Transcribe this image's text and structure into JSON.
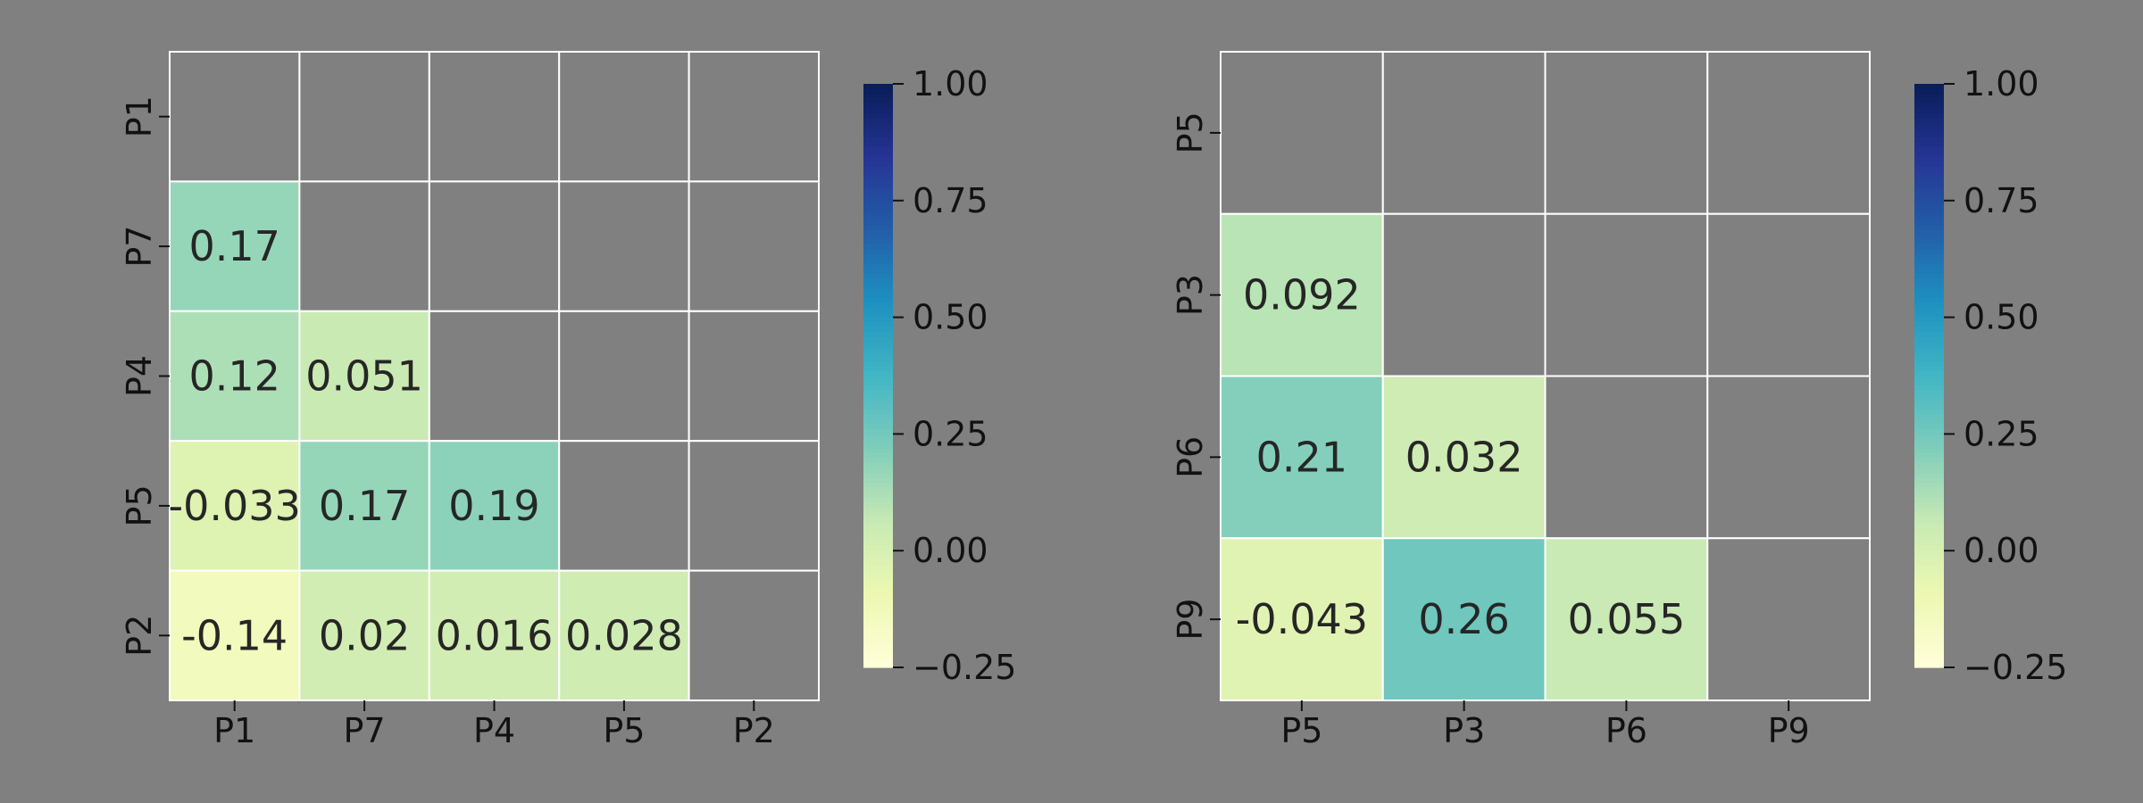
{
  "chart_data": [
    {
      "type": "heatmap",
      "title": "",
      "xlabel": "",
      "ylabel": "",
      "x_categories": [
        "P1",
        "P7",
        "P4",
        "P5",
        "P2"
      ],
      "y_categories": [
        "P1",
        "P7",
        "P4",
        "P5",
        "P2"
      ],
      "mask": "upper triangle incl. diagonal",
      "values": [
        [
          null,
          null,
          null,
          null,
          null
        ],
        [
          0.17,
          null,
          null,
          null,
          null
        ],
        [
          0.12,
          0.051,
          null,
          null,
          null
        ],
        [
          -0.033,
          0.17,
          0.19,
          null,
          null
        ],
        [
          -0.14,
          0.02,
          0.016,
          0.028,
          null
        ]
      ],
      "annotations": [
        [
          null,
          null,
          null,
          null,
          null
        ],
        [
          "0.17",
          null,
          null,
          null,
          null
        ],
        [
          "0.12",
          "0.051",
          null,
          null,
          null
        ],
        [
          "-0.033",
          "0.17",
          "0.19",
          null,
          null
        ],
        [
          "-0.14",
          "0.02",
          "0.016",
          "0.028",
          null
        ]
      ],
      "colorbar": {
        "colormap": "YlGnBu",
        "vmin": -0.25,
        "vmax": 1.0,
        "ticks": [
          "1.00",
          "0.75",
          "0.50",
          "0.25",
          "0.00",
          "−0.25"
        ],
        "tick_values": [
          1.0,
          0.75,
          0.5,
          0.25,
          0.0,
          -0.25
        ]
      },
      "grid": true,
      "gridcolor": "#ffffff"
    },
    {
      "type": "heatmap",
      "title": "",
      "xlabel": "",
      "ylabel": "",
      "x_categories": [
        "P5",
        "P3",
        "P6",
        "P9"
      ],
      "y_categories": [
        "P5",
        "P3",
        "P6",
        "P9"
      ],
      "mask": "upper triangle incl. diagonal",
      "values": [
        [
          null,
          null,
          null,
          null
        ],
        [
          0.092,
          null,
          null,
          null
        ],
        [
          0.21,
          0.032,
          null,
          null
        ],
        [
          -0.043,
          0.26,
          0.055,
          null
        ]
      ],
      "annotations": [
        [
          null,
          null,
          null,
          null
        ],
        [
          "0.092",
          null,
          null,
          null
        ],
        [
          "0.21",
          "0.032",
          null,
          null
        ],
        [
          "-0.043",
          "0.26",
          "0.055",
          null
        ]
      ],
      "colorbar": {
        "colormap": "YlGnBu",
        "vmin": -0.25,
        "vmax": 1.0,
        "ticks": [
          "1.00",
          "0.75",
          "0.50",
          "0.25",
          "0.00",
          "−0.25"
        ],
        "tick_values": [
          1.0,
          0.75,
          0.5,
          0.25,
          0.0,
          -0.25
        ]
      },
      "grid": true,
      "gridcolor": "#ffffff"
    }
  ],
  "colors": {
    "background": "#808080",
    "masked_cell": "#808080",
    "colormap_stops": [
      "#ffffd9",
      "#edf8b1",
      "#c7e9b4",
      "#7fcdbb",
      "#41b6c4",
      "#1d91c0",
      "#225ea8",
      "#253494",
      "#081d58"
    ]
  }
}
